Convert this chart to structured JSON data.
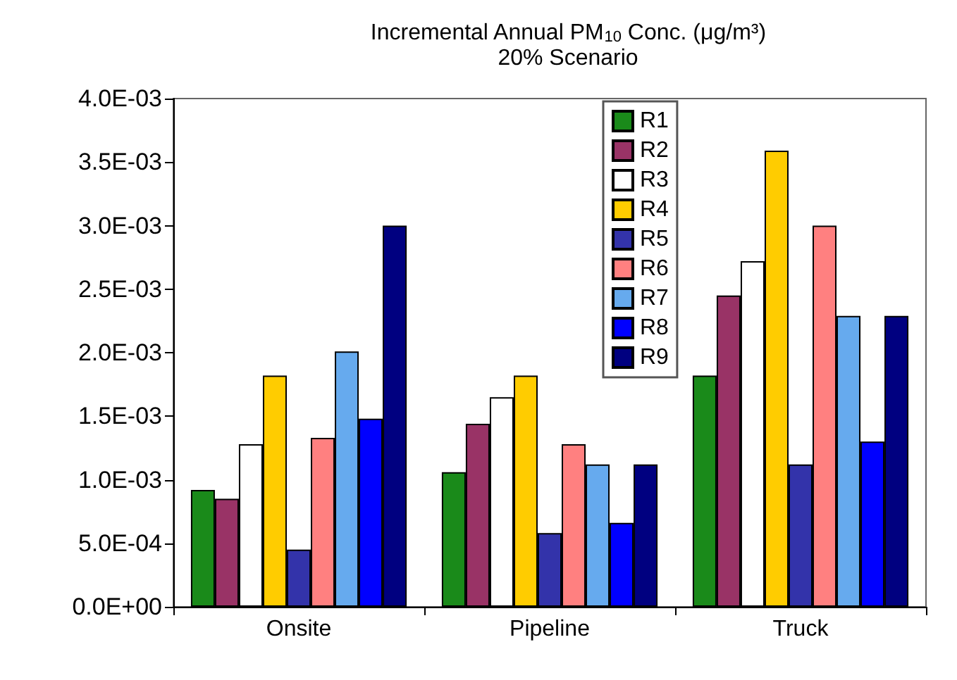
{
  "chart_data": {
    "type": "bar",
    "title": "Incremental Annual PM$_{10}$ Conc. (μg/m³)",
    "subtitle": "20% Scenario",
    "categories": [
      "Onsite",
      "Pipeline",
      "Truck"
    ],
    "series": [
      {
        "name": "R1",
        "color": "#1a8a1a",
        "values": [
          0.00092,
          0.00106,
          0.00182
        ]
      },
      {
        "name": "R2",
        "color": "#993366",
        "values": [
          0.00085,
          0.00144,
          0.00245
        ]
      },
      {
        "name": "R3",
        "color": "#ffffff",
        "values": [
          0.00128,
          0.00165,
          0.00272
        ]
      },
      {
        "name": "R4",
        "color": "#ffcc00",
        "values": [
          0.00182,
          0.00182,
          0.00359
        ]
      },
      {
        "name": "R5",
        "color": "#3333aa",
        "values": [
          0.00045,
          0.00058,
          0.00112
        ]
      },
      {
        "name": "R6",
        "color": "#ff8080",
        "values": [
          0.00133,
          0.00128,
          0.003
        ]
      },
      {
        "name": "R7",
        "color": "#66aaee",
        "values": [
          0.00201,
          0.00112,
          0.00229
        ]
      },
      {
        "name": "R8",
        "color": "#0000ff",
        "values": [
          0.00148,
          0.00066,
          0.0013
        ]
      },
      {
        "name": "R9",
        "color": "#000080",
        "values": [
          0.003,
          0.00112,
          0.00229
        ]
      }
    ],
    "ylim": [
      0,
      0.004
    ],
    "yticks": [
      {
        "value": 0,
        "label": "0.0E+00"
      },
      {
        "value": 0.0005,
        "label": "5.0E-04"
      },
      {
        "value": 0.001,
        "label": "1.0E-03"
      },
      {
        "value": 0.0015,
        "label": "1.5E-03"
      },
      {
        "value": 0.002,
        "label": "2.0E-03"
      },
      {
        "value": 0.0025,
        "label": "2.5E-03"
      },
      {
        "value": 0.003,
        "label": "3.0E-03"
      },
      {
        "value": 0.0035,
        "label": "3.5E-03"
      },
      {
        "value": 0.004,
        "label": "4.0E-03"
      }
    ],
    "legend": "top",
    "grid": false
  }
}
